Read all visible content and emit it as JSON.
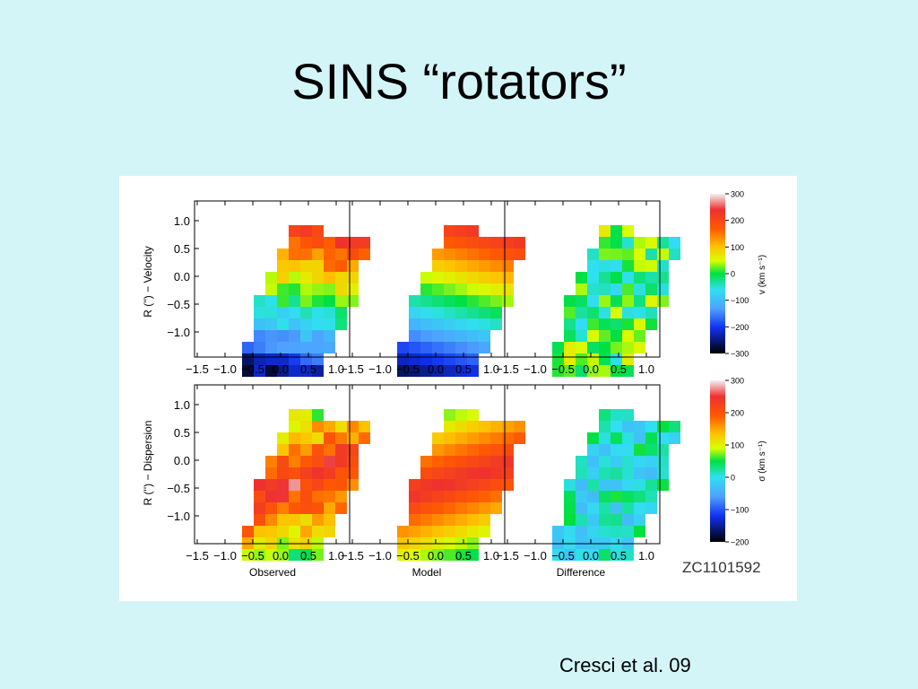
{
  "slide": {
    "title": "SINS “rotators”",
    "citation": "Cresci et al. 09"
  },
  "figure": {
    "object_label": "ZC1101592",
    "rows": [
      {
        "ylabel": "R ('') − Velocity",
        "colorbar_label": "v (km s⁻¹)",
        "colorbar_ticks": [
          "300",
          "200",
          "100",
          "0",
          "−100",
          "−200",
          "−300"
        ]
      },
      {
        "ylabel": "R ('') − Dispersion",
        "colorbar_label": "σ (km s⁻¹)",
        "colorbar_ticks": [
          "300",
          "200",
          "100",
          "0",
          "−100",
          "−200"
        ]
      }
    ],
    "columns": [
      "Observed",
      "Model",
      "Difference"
    ],
    "y_ticks": [
      "1.0",
      "0.5",
      "0.0",
      "−0.5",
      "−1.0"
    ],
    "x_ticks": [
      "−1.5",
      "−1.0",
      "−0.5",
      "0.0",
      "0.5",
      "1.0"
    ]
  }
}
